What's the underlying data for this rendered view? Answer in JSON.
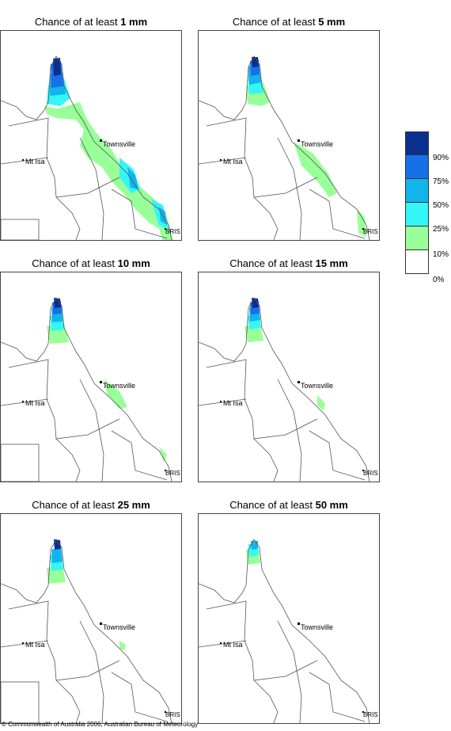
{
  "panels": [
    {
      "prefix": "Chance of at least ",
      "amount": "1 mm"
    },
    {
      "prefix": "Chance of at least ",
      "amount": "5 mm"
    },
    {
      "prefix": "Chance of at least ",
      "amount": "10 mm"
    },
    {
      "prefix": "Chance of at least ",
      "amount": "15 mm"
    },
    {
      "prefix": "Chance of at least ",
      "amount": "25 mm"
    },
    {
      "prefix": "Chance of at least ",
      "amount": "50 mm"
    }
  ],
  "places": {
    "townsville": "Townsville",
    "mt_isa": "Mt Isa",
    "bris": "BRIS"
  },
  "legend": {
    "labels": [
      "90%",
      "75%",
      "50%",
      "25%",
      "10%",
      "0%"
    ],
    "colors": [
      "#0a2f8f",
      "#1670e8",
      "#12b4ec",
      "#34f6f6",
      "#99ff99",
      "#ffffff"
    ]
  },
  "credit": "© Commonwealth of Australia 2006, Australian Bureau of Meteorology"
}
